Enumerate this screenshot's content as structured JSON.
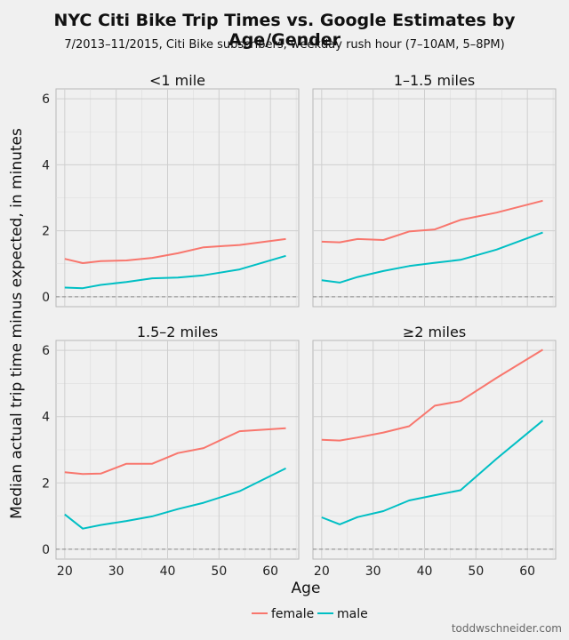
{
  "chart_data": {
    "type": "line",
    "title": "NYC Citi Bike Trip Times vs. Google Estimates by Age/Gender",
    "subtitle": "7/2013–11/2015, Citi Bike subscribers, weekday rush hour (7–10AM, 5–8PM)",
    "xlabel": "Age",
    "ylabel": "Median actual trip time minus expected, in minutes",
    "xlim": [
      18.3,
      65.5
    ],
    "ylim": [
      -0.3,
      6.3
    ],
    "xticks": [
      20,
      30,
      40,
      50,
      60
    ],
    "yticks": [
      0,
      2,
      4,
      6
    ],
    "reference_line": 0,
    "grid": true,
    "legend_position": "bottom",
    "legend": [
      {
        "name": "female",
        "color": "#f8766d"
      },
      {
        "name": "male",
        "color": "#00bfc4"
      }
    ],
    "facets": [
      {
        "label": "<1 mile",
        "series": [
          {
            "name": "female",
            "x": [
              20,
              23.5,
              27,
              32,
              37,
              42,
              47,
              54,
              63
            ],
            "y": [
              1.15,
              1.02,
              1.08,
              1.1,
              1.18,
              1.32,
              1.5,
              1.57,
              1.75
            ]
          },
          {
            "name": "male",
            "x": [
              20,
              23.5,
              27,
              32,
              37,
              42,
              47,
              54,
              63
            ],
            "y": [
              0.28,
              0.26,
              0.36,
              0.45,
              0.56,
              0.58,
              0.65,
              0.83,
              1.24
            ]
          }
        ]
      },
      {
        "label": "1–1.5 miles",
        "series": [
          {
            "name": "female",
            "x": [
              20,
              23.5,
              27,
              32,
              37,
              42,
              47,
              54,
              63
            ],
            "y": [
              1.67,
              1.65,
              1.75,
              1.72,
              1.98,
              2.04,
              2.33,
              2.55,
              2.91
            ]
          },
          {
            "name": "male",
            "x": [
              20,
              23.5,
              27,
              32,
              37,
              42,
              47,
              54,
              63
            ],
            "y": [
              0.5,
              0.43,
              0.6,
              0.78,
              0.93,
              1.03,
              1.12,
              1.43,
              1.95
            ]
          }
        ]
      },
      {
        "label": "1.5–2 miles",
        "series": [
          {
            "name": "female",
            "x": [
              20,
              23.5,
              27,
              32,
              37,
              42,
              47,
              54,
              63
            ],
            "y": [
              2.32,
              2.27,
              2.28,
              2.58,
              2.58,
              2.9,
              3.05,
              3.56,
              3.65
            ]
          },
          {
            "name": "male",
            "x": [
              20,
              23.5,
              27,
              32,
              37,
              42,
              47,
              54,
              63
            ],
            "y": [
              1.05,
              0.62,
              0.73,
              0.85,
              0.99,
              1.21,
              1.4,
              1.75,
              2.44
            ]
          }
        ]
      },
      {
        "label": "≥2 miles",
        "series": [
          {
            "name": "female",
            "x": [
              20,
              23.5,
              27,
              32,
              37,
              42,
              47,
              54,
              63
            ],
            "y": [
              3.3,
              3.28,
              3.37,
              3.52,
              3.71,
              4.33,
              4.47,
              5.17,
              6.02
            ]
          },
          {
            "name": "male",
            "x": [
              20,
              23.5,
              27,
              32,
              37,
              42,
              47,
              54,
              63
            ],
            "y": [
              0.96,
              0.75,
              0.97,
              1.15,
              1.47,
              1.63,
              1.78,
              2.73,
              3.88
            ]
          }
        ]
      }
    ]
  },
  "watermark": "toddwschneider.com"
}
